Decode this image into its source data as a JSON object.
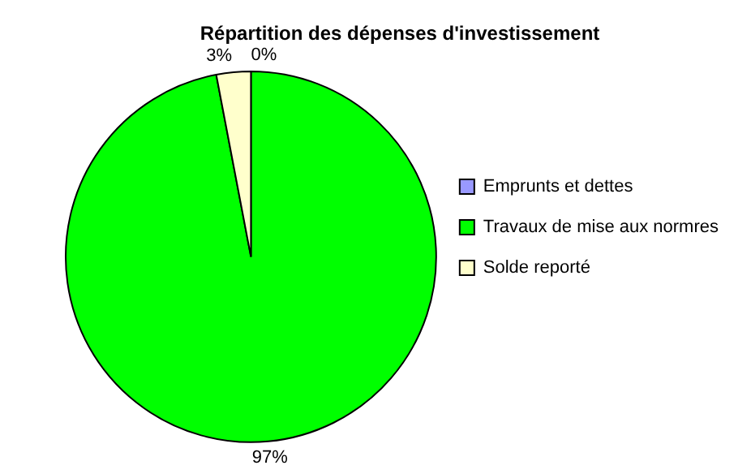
{
  "chart_data": {
    "type": "pie",
    "title": "Répartition des dépenses d'investissement",
    "categories": [
      "Emprunts et dettes",
      "Travaux de mise aux normres",
      "Solde reporté"
    ],
    "values": [
      0,
      97,
      3
    ],
    "colors": [
      "#9999ff",
      "#00ff00",
      "#ffffcc"
    ],
    "value_labels": [
      "0%",
      "97%",
      "3%"
    ],
    "legend": "right"
  }
}
